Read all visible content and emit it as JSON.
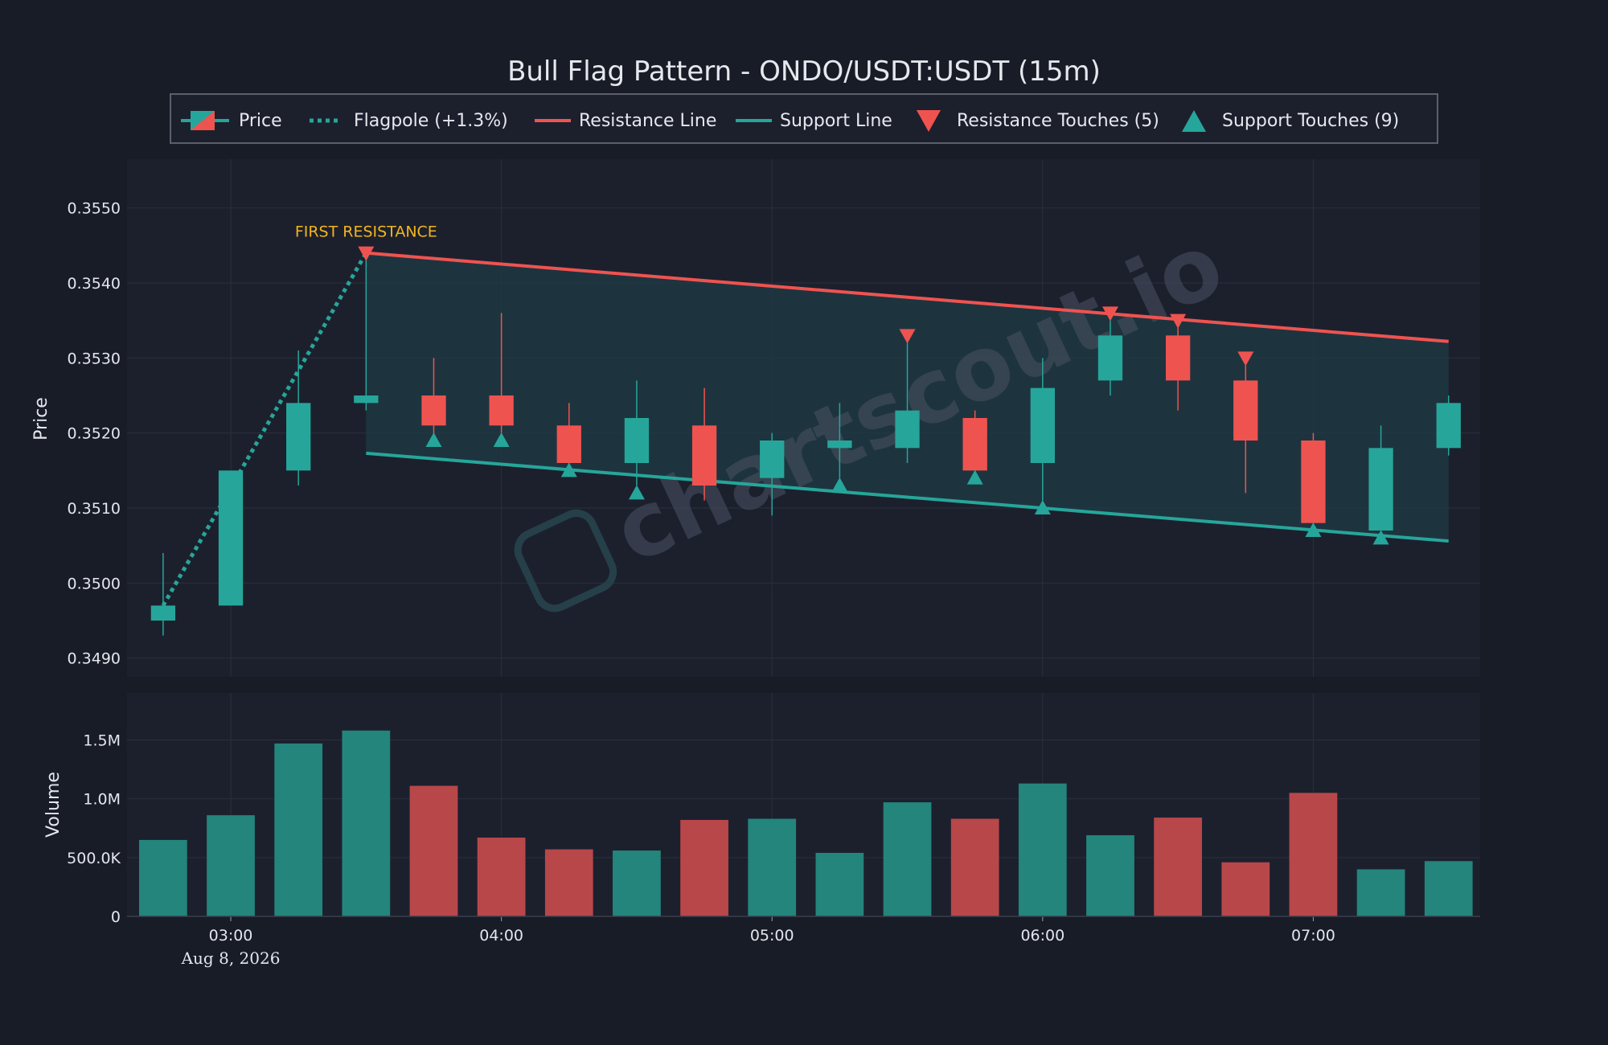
{
  "colors": {
    "background": "#181c26",
    "panel": "#1c202d",
    "grid": "#2a2f3d",
    "bull": "#26a69a",
    "bear": "#ef5350",
    "bull_volume": "#23857c",
    "bear_volume": "#b8474a",
    "text": "#e3e6ec",
    "annotation": "#f2b51f",
    "channel_fill": "#1e3b46"
  },
  "chart_data": {
    "type": "candlestick",
    "title": "Bull Flag Pattern - ONDO/USDT:USDT (15m)",
    "watermark": "chartscout.io",
    "legend": {
      "placement": "top",
      "items": [
        {
          "label": "Price",
          "icon": "candle-icon"
        },
        {
          "label": "Flagpole (+1.3%)",
          "icon": "dotted-line-icon"
        },
        {
          "label": "Resistance Line",
          "icon": "red-line-icon"
        },
        {
          "label": "Support Line",
          "icon": "teal-line-icon"
        },
        {
          "label": "Resistance Touches (5)",
          "icon": "down-triangle-icon"
        },
        {
          "label": "Support Touches (9)",
          "icon": "up-triangle-icon"
        }
      ]
    },
    "price_axis": {
      "label": "Price",
      "ylim": [
        0.34875,
        0.35565
      ],
      "ticks": [
        0.349,
        0.35,
        0.351,
        0.352,
        0.353,
        0.354,
        0.355
      ],
      "tick_labels": [
        "0.3490",
        "0.3500",
        "0.3510",
        "0.3520",
        "0.3530",
        "0.3540",
        "0.3550"
      ]
    },
    "volume_axis": {
      "label": "Volume",
      "ylim": [
        0,
        1900000
      ],
      "ticks": [
        0,
        500000,
        1000000,
        1500000
      ],
      "tick_labels": [
        "0",
        "500.0K",
        "1.0M",
        "1.5M"
      ]
    },
    "x_axis": {
      "xlim": [
        "02:37",
        "07:37"
      ],
      "ticks": [
        "03:00",
        "04:00",
        "05:00",
        "06:00",
        "07:00"
      ],
      "date_label": "Aug 8, 2026",
      "grid": true
    },
    "candles": [
      {
        "time": "02:45",
        "open": 0.3495,
        "high": 0.3504,
        "low": 0.3493,
        "close": 0.3497,
        "volume": 650000
      },
      {
        "time": "03:00",
        "open": 0.3497,
        "high": 0.3515,
        "low": 0.3497,
        "close": 0.3515,
        "volume": 860000
      },
      {
        "time": "03:15",
        "open": 0.3515,
        "high": 0.3531,
        "low": 0.3513,
        "close": 0.3524,
        "volume": 1470000
      },
      {
        "time": "03:30",
        "open": 0.3524,
        "high": 0.3544,
        "low": 0.3523,
        "close": 0.3525,
        "volume": 1580000
      },
      {
        "time": "03:45",
        "open": 0.3525,
        "high": 0.353,
        "low": 0.3519,
        "close": 0.3521,
        "volume": 1110000
      },
      {
        "time": "04:00",
        "open": 0.3525,
        "high": 0.3536,
        "low": 0.352,
        "close": 0.3521,
        "volume": 670000
      },
      {
        "time": "04:15",
        "open": 0.3521,
        "high": 0.3524,
        "low": 0.3515,
        "close": 0.3516,
        "volume": 570000
      },
      {
        "time": "04:30",
        "open": 0.3516,
        "high": 0.3527,
        "low": 0.3513,
        "close": 0.3522,
        "volume": 560000
      },
      {
        "time": "04:45",
        "open": 0.3521,
        "high": 0.3526,
        "low": 0.3511,
        "close": 0.3513,
        "volume": 820000
      },
      {
        "time": "05:00",
        "open": 0.3514,
        "high": 0.352,
        "low": 0.3509,
        "close": 0.3519,
        "volume": 830000
      },
      {
        "time": "05:15",
        "open": 0.3518,
        "high": 0.3524,
        "low": 0.3514,
        "close": 0.3519,
        "volume": 540000
      },
      {
        "time": "05:30",
        "open": 0.3518,
        "high": 0.3532,
        "low": 0.3516,
        "close": 0.3523,
        "volume": 970000
      },
      {
        "time": "05:45",
        "open": 0.3522,
        "high": 0.3523,
        "low": 0.3514,
        "close": 0.3515,
        "volume": 830000
      },
      {
        "time": "06:00",
        "open": 0.3516,
        "high": 0.353,
        "low": 0.3511,
        "close": 0.3526,
        "volume": 1130000
      },
      {
        "time": "06:15",
        "open": 0.3527,
        "high": 0.3535,
        "low": 0.3525,
        "close": 0.3533,
        "volume": 690000
      },
      {
        "time": "06:30",
        "open": 0.3533,
        "high": 0.3535,
        "low": 0.3523,
        "close": 0.3527,
        "volume": 840000
      },
      {
        "time": "06:45",
        "open": 0.3527,
        "high": 0.3529,
        "low": 0.3512,
        "close": 0.3519,
        "volume": 460000
      },
      {
        "time": "07:00",
        "open": 0.3519,
        "high": 0.352,
        "low": 0.3508,
        "close": 0.3508,
        "volume": 1050000
      },
      {
        "time": "07:15",
        "open": 0.3507,
        "high": 0.3521,
        "low": 0.3507,
        "close": 0.3518,
        "volume": 400000
      },
      {
        "time": "07:30",
        "open": 0.3518,
        "high": 0.3525,
        "low": 0.3517,
        "close": 0.3524,
        "volume": 470000
      }
    ],
    "flagpole": {
      "label": "Flagpole (+1.3%)",
      "start": {
        "time": "02:45",
        "price": 0.3497
      },
      "end": {
        "time": "03:30",
        "price": 0.3544
      }
    },
    "resistance_line": {
      "label": "Resistance Line",
      "start": {
        "time": "03:30",
        "price": 0.3544
      },
      "end": {
        "time": "07:30",
        "price": 0.35322
      }
    },
    "support_line": {
      "label": "Support Line",
      "start": {
        "time": "03:30",
        "price": 0.35173
      },
      "end": {
        "time": "07:30",
        "price": 0.35056
      }
    },
    "resistance_touches": [
      {
        "time": "03:30",
        "price": 0.3544
      },
      {
        "time": "05:30",
        "price": 0.3533
      },
      {
        "time": "06:15",
        "price": 0.3536
      },
      {
        "time": "06:30",
        "price": 0.3535
      },
      {
        "time": "06:45",
        "price": 0.353
      }
    ],
    "support_touches": [
      {
        "time": "03:45",
        "price": 0.3519
      },
      {
        "time": "04:00",
        "price": 0.3519
      },
      {
        "time": "04:15",
        "price": 0.3515
      },
      {
        "time": "04:30",
        "price": 0.3512
      },
      {
        "time": "05:15",
        "price": 0.3513
      },
      {
        "time": "05:45",
        "price": 0.3514
      },
      {
        "time": "06:00",
        "price": 0.351
      },
      {
        "time": "07:00",
        "price": 0.3507
      },
      {
        "time": "07:15",
        "price": 0.3506
      }
    ],
    "annotations": [
      {
        "text": "FIRST RESISTANCE",
        "time": "03:30",
        "price": 0.3547
      }
    ]
  }
}
